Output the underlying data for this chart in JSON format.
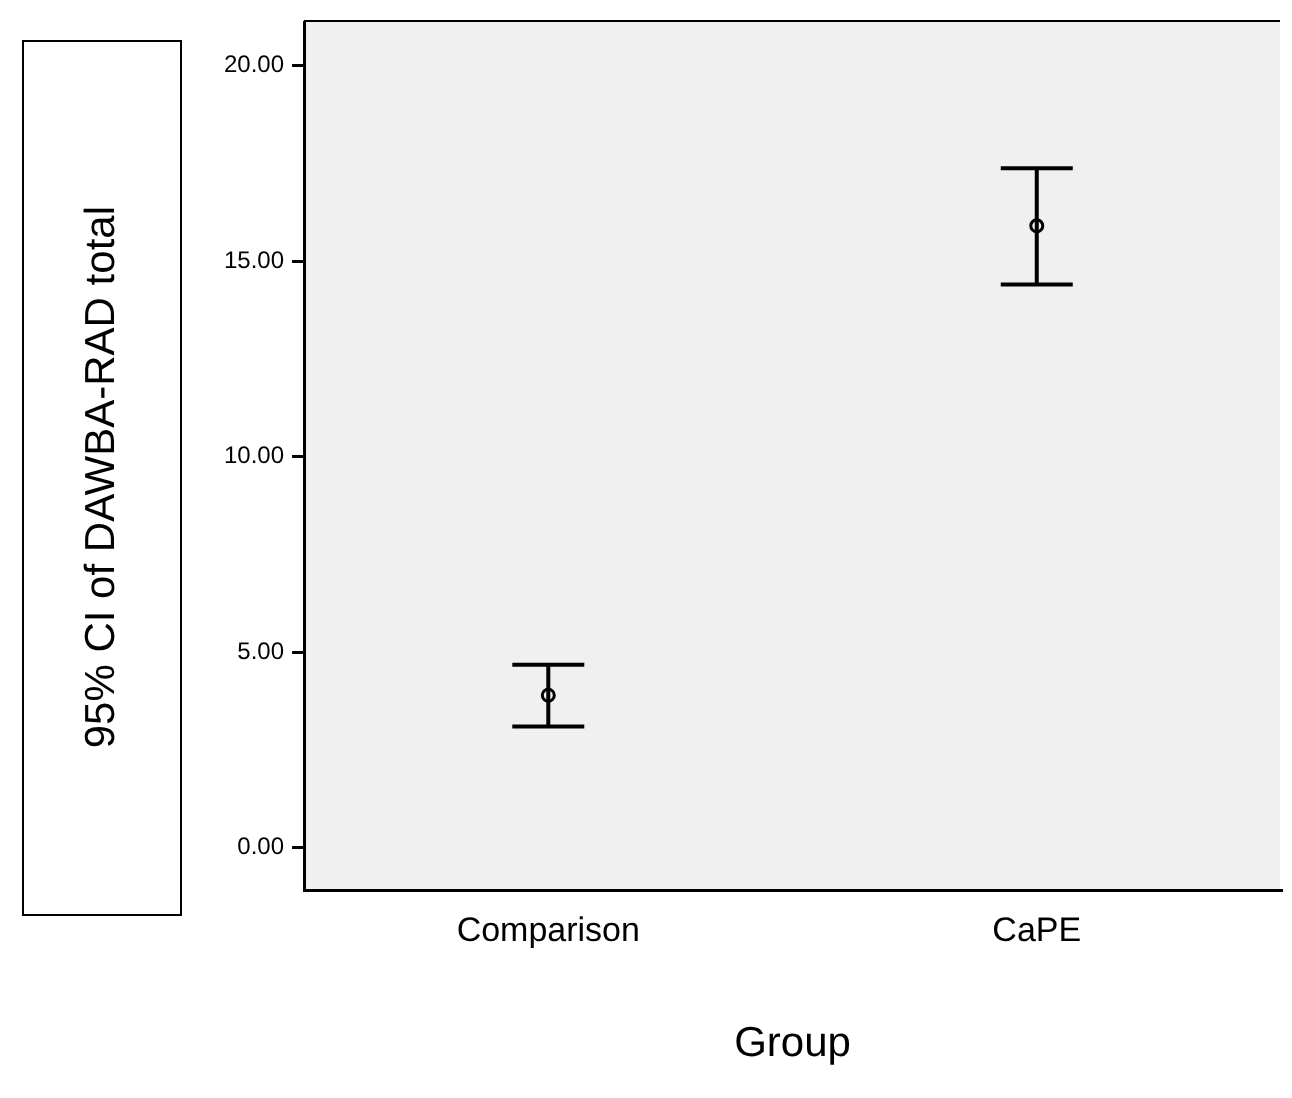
{
  "chart_data": {
    "type": "scatter",
    "xlabel": "Group",
    "ylabel": "95% CI of DAWBA-RAD total",
    "categories": [
      "Comparison",
      "CaPE"
    ],
    "values": [
      3.9,
      15.9
    ],
    "errors": [
      [
        3.1,
        4.68
      ],
      [
        14.4,
        17.37
      ]
    ],
    "color": "#000000",
    "marker": "circle",
    "ylim": [
      -1.1,
      21.1
    ],
    "yticks": [
      {
        "value": 0,
        "label": "0.00"
      },
      {
        "value": 5,
        "label": "5.00"
      },
      {
        "value": 10,
        "label": "10.00"
      },
      {
        "value": 15,
        "label": "15.00"
      },
      {
        "value": 20,
        "label": "20.00"
      }
    ],
    "grid": false,
    "legend": false
  }
}
